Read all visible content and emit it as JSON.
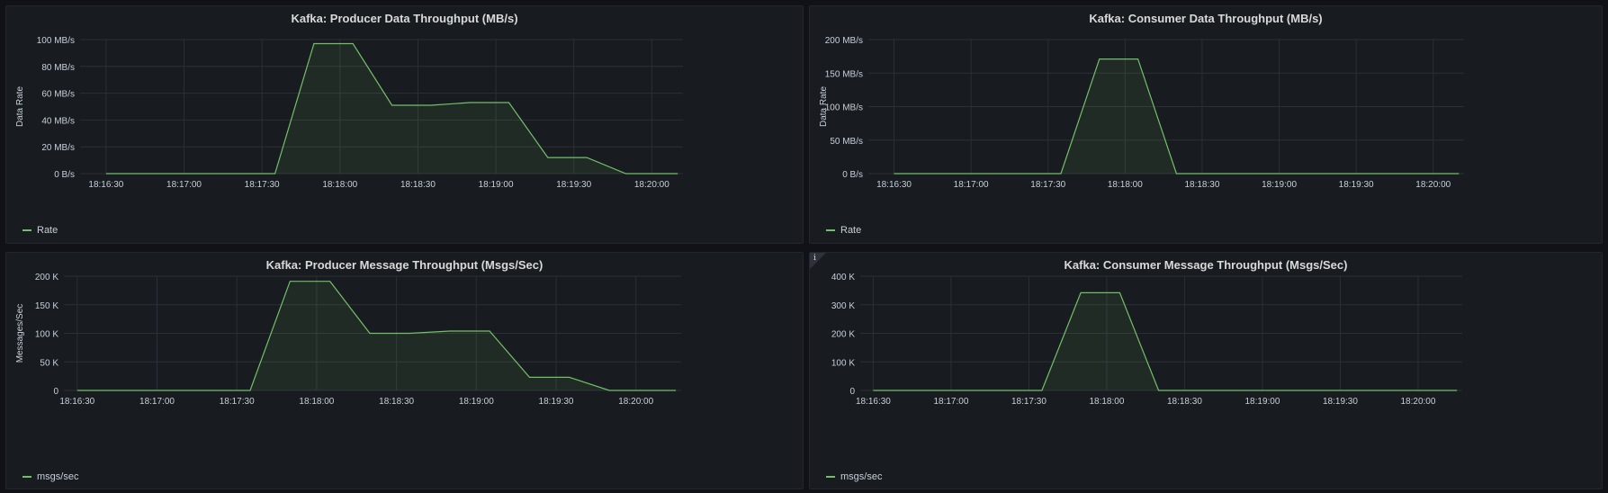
{
  "panels": [
    {
      "id": "producer-data",
      "title": "Kafka: Producer Data Throughput (MB/s)",
      "legend": "Rate",
      "info": false
    },
    {
      "id": "consumer-data",
      "title": "Kafka: Consumer Data Throughput (MB/s)",
      "legend": "Rate",
      "info": false
    },
    {
      "id": "producer-msg",
      "title": "Kafka: Producer Message Throughput (Msgs/Sec)",
      "legend": "msgs/sec",
      "info": false
    },
    {
      "id": "consumer-msg",
      "title": "Kafka: Consumer Message Throughput (Msgs/Sec)",
      "legend": "msgs/sec",
      "info": true,
      "info_glyph": "i"
    }
  ],
  "chart_data": [
    {
      "type": "area",
      "title": "Kafka: Producer Data Throughput (MB/s)",
      "ylabel": "Data Rate",
      "ylim": [
        0,
        100
      ],
      "yticks": [
        0,
        20,
        40,
        60,
        80,
        100
      ],
      "ytick_labels": [
        "0 B/s",
        "20 MB/s",
        "40 MB/s",
        "60 MB/s",
        "80 MB/s",
        "100 MB/s"
      ],
      "xticks": [
        "18:16:30",
        "18:17:00",
        "18:17:30",
        "18:18:00",
        "18:18:30",
        "18:19:00",
        "18:19:30",
        "18:20:00"
      ],
      "xlim_sec": [
        -10,
        222
      ],
      "series": [
        {
          "name": "Rate",
          "color": "#73bf69",
          "points": [
            [
              0,
              0
            ],
            [
              15,
              0
            ],
            [
              30,
              0
            ],
            [
              45,
              0
            ],
            [
              60,
              0
            ],
            [
              65,
              0
            ],
            [
              80,
              97
            ],
            [
              95,
              97
            ],
            [
              110,
              51
            ],
            [
              125,
              51
            ],
            [
              140,
              53
            ],
            [
              155,
              53
            ],
            [
              170,
              12
            ],
            [
              185,
              12
            ],
            [
              200,
              0
            ],
            [
              215,
              0
            ],
            [
              230,
              0
            ]
          ]
        }
      ]
    },
    {
      "type": "area",
      "title": "Kafka: Consumer Data Throughput (MB/s)",
      "ylabel": "Data Rate",
      "ylim": [
        0,
        200
      ],
      "yticks": [
        0,
        50,
        100,
        150,
        200
      ],
      "ytick_labels": [
        "0 B/s",
        "50 MB/s",
        "100 MB/s",
        "150 MB/s",
        "200 MB/s"
      ],
      "xticks": [
        "18:16:30",
        "18:17:00",
        "18:17:30",
        "18:18:00",
        "18:18:30",
        "18:19:00",
        "18:19:30",
        "18:20:00"
      ],
      "xlim_sec": [
        -10,
        222
      ],
      "series": [
        {
          "name": "Rate",
          "color": "#73bf69",
          "points": [
            [
              0,
              0
            ],
            [
              15,
              0
            ],
            [
              30,
              0
            ],
            [
              45,
              0
            ],
            [
              60,
              0
            ],
            [
              65,
              0
            ],
            [
              80,
              171
            ],
            [
              95,
              171
            ],
            [
              110,
              0
            ],
            [
              125,
              0
            ],
            [
              140,
              0
            ],
            [
              155,
              0
            ],
            [
              170,
              0
            ],
            [
              185,
              0
            ],
            [
              200,
              0
            ],
            [
              215,
              0
            ],
            [
              230,
              0
            ]
          ]
        }
      ]
    },
    {
      "type": "area",
      "title": "Kafka: Producer Message Throughput (Msgs/Sec)",
      "ylabel": "Messages/Sec",
      "ylim": [
        0,
        200000
      ],
      "yticks": [
        0,
        50000,
        100000,
        150000,
        200000
      ],
      "ytick_labels": [
        "0",
        "50 K",
        "100 K",
        "150 K",
        "200 K"
      ],
      "xticks": [
        "18:16:30",
        "18:17:00",
        "18:17:30",
        "18:18:00",
        "18:18:30",
        "18:19:00",
        "18:19:30",
        "18:20:00"
      ],
      "xlim_sec": [
        -5,
        227
      ],
      "series": [
        {
          "name": "msgs/sec",
          "color": "#73bf69",
          "points": [
            [
              0,
              0
            ],
            [
              15,
              0
            ],
            [
              30,
              0
            ],
            [
              45,
              0
            ],
            [
              60,
              0
            ],
            [
              65,
              0
            ],
            [
              80,
              191000
            ],
            [
              95,
              191000
            ],
            [
              110,
              100000
            ],
            [
              125,
              100000
            ],
            [
              140,
              104000
            ],
            [
              155,
              104000
            ],
            [
              170,
              23000
            ],
            [
              185,
              23000
            ],
            [
              200,
              0
            ],
            [
              215,
              0
            ],
            [
              230,
              0
            ]
          ]
        }
      ]
    },
    {
      "type": "area",
      "title": "Kafka: Consumer Message Throughput (Msgs/Sec)",
      "ylabel": "",
      "ylim": [
        0,
        400000
      ],
      "yticks": [
        0,
        100000,
        200000,
        300000,
        400000
      ],
      "ytick_labels": [
        "0",
        "100 K",
        "200 K",
        "300 K",
        "400 K"
      ],
      "xticks": [
        "18:16:30",
        "18:17:00",
        "18:17:30",
        "18:18:00",
        "18:18:30",
        "18:19:00",
        "18:19:30",
        "18:20:00"
      ],
      "xlim_sec": [
        -5,
        227
      ],
      "series": [
        {
          "name": "msgs/sec",
          "color": "#73bf69",
          "points": [
            [
              0,
              0
            ],
            [
              15,
              0
            ],
            [
              30,
              0
            ],
            [
              45,
              0
            ],
            [
              60,
              0
            ],
            [
              65,
              0
            ],
            [
              80,
              342000
            ],
            [
              95,
              342000
            ],
            [
              110,
              0
            ],
            [
              125,
              0
            ],
            [
              140,
              0
            ],
            [
              155,
              0
            ],
            [
              170,
              0
            ],
            [
              185,
              0
            ],
            [
              200,
              0
            ],
            [
              215,
              0
            ],
            [
              230,
              0
            ]
          ]
        }
      ]
    }
  ]
}
